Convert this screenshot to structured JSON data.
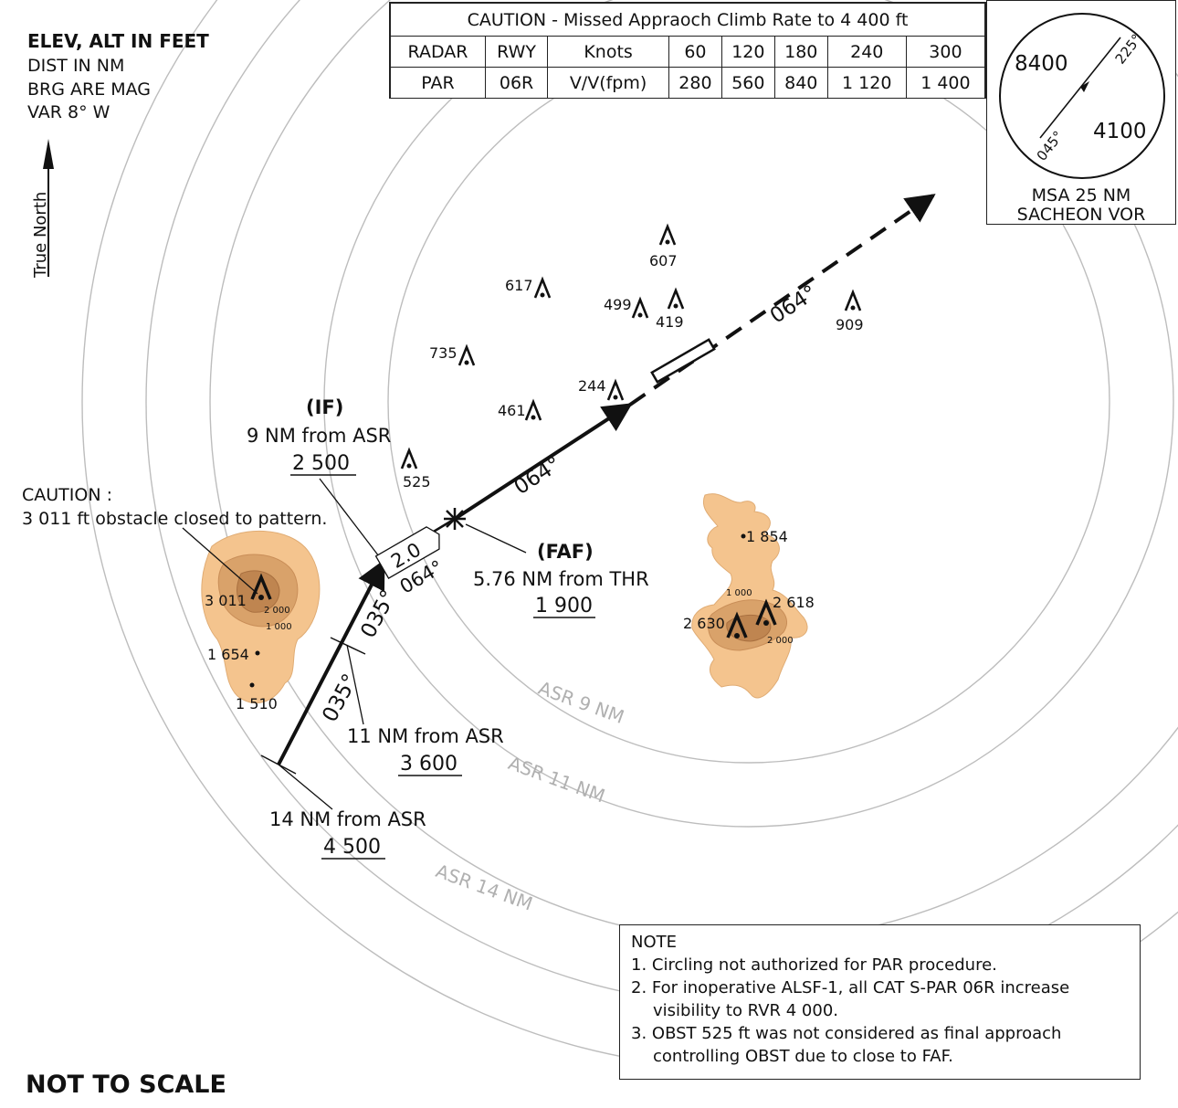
{
  "header": {
    "line1": "ELEV, ALT IN FEET",
    "line2": "DIST IN NM",
    "line3": "BRG ARE MAG",
    "line4": "VAR 8° W"
  },
  "true_north_label": "True North",
  "missed_approach": {
    "title": "CAUTION - Missed Appraoch Climb Rate to 4 400 ft",
    "row1": [
      "RADAR",
      "RWY",
      "Knots",
      "60",
      "120",
      "180",
      "240",
      "300"
    ],
    "row2": [
      "PAR",
      "06R",
      "V/V(fpm)",
      "280",
      "560",
      "840",
      "1 120",
      "1 400"
    ]
  },
  "msa": {
    "sector_alt_nw": "8400",
    "sector_alt_se": "4100",
    "brg_ne": "225°",
    "brg_sw": "045°",
    "caption1": "MSA 25 NM",
    "caption2": "SACHEON VOR"
  },
  "rings": {
    "asr9": "ASR 9 NM",
    "asr11": "ASR 11 NM",
    "asr14": "ASR 14 NM"
  },
  "fixes": {
    "if_title": "(IF)",
    "if_dist": "9 NM from ASR",
    "if_alt": "2 500",
    "faf_title": "(FAF)",
    "faf_dist": "5.76 NM from THR",
    "faf_alt": "1 900",
    "fix11_dist": "11 NM from ASR",
    "fix11_alt": "3 600",
    "fix14_dist": "14 NM from ASR",
    "fix14_alt": "4 500"
  },
  "tracks": {
    "final_brg": "064°",
    "missed_brg": "064°",
    "turn_dist": "2.0",
    "turn_brg": "064°",
    "inbound_brg_upper": "035°",
    "inbound_brg_lower": "035°"
  },
  "caution": {
    "line1": "CAUTION :",
    "line2": "3 011 ft obstacle closed to pattern."
  },
  "obstacles": {
    "o617": "617",
    "o607": "607",
    "o499": "499",
    "o419": "419",
    "o909": "909",
    "o735": "735",
    "o244": "244",
    "o461": "461",
    "o525": "525"
  },
  "terrain_west": {
    "peak": "3 011",
    "contour_2000": "2 000",
    "contour_1000": "1 000",
    "spot1": "1 654",
    "spot2": "1 510"
  },
  "terrain_east": {
    "spot_top": "1 854",
    "contour_1000": "1 000",
    "peak_west": "2 630",
    "peak_east": "2 618",
    "contour_2000": "2 000"
  },
  "note": {
    "title": "NOTE",
    "items": [
      "1. Circling not authorized for PAR procedure.",
      "2. For inoperative ALSF-1, all CAT S-PAR 06R increase visibility to RVR 4 000.",
      "3. OBST 525 ft was not considered as final approach controlling OBST due to close to FAF."
    ]
  },
  "footer": "NOT TO SCALE",
  "colors": {
    "terrain_light": "#f4c48e",
    "terrain_dark": "#c98e58",
    "ring": "#bdbdbd",
    "ring_label": "#b0b0b0"
  }
}
